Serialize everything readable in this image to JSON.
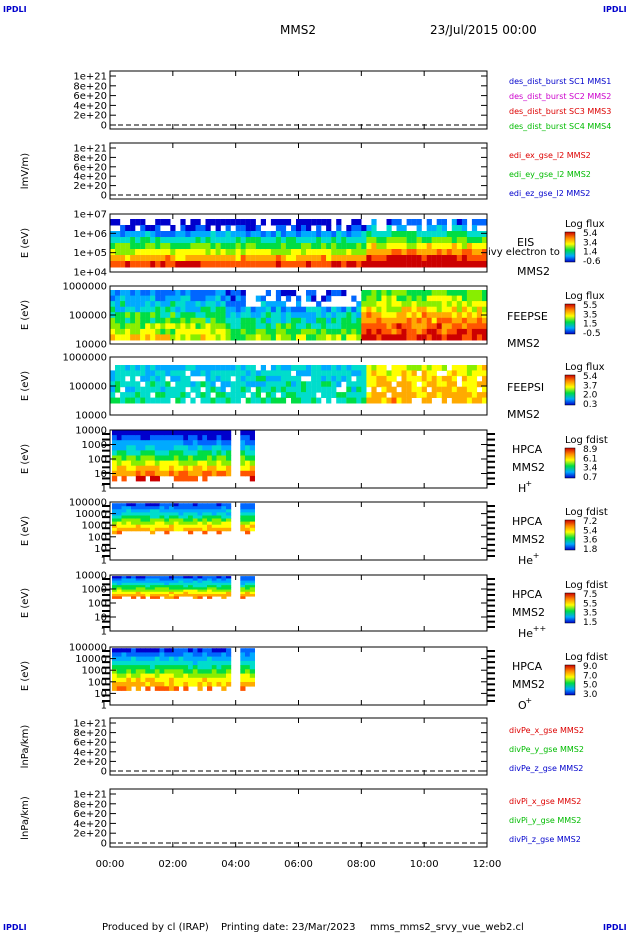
{
  "corner_labels": {
    "top_left": "IPDLI",
    "top_right": "IPDLI",
    "bottom_left": "IPDLI",
    "bottom_right": "IPDLI"
  },
  "header": {
    "mission": "MMS2",
    "date": "23/Jul/2015 00:00"
  },
  "footer": {
    "produced_by": "Produced by cl (IRAP)",
    "print_date": "Printing date: 23/Mar/2023",
    "filename": "mms_mms2_srvy_vue_web2.cl"
  },
  "time_axis": [
    "00:00",
    "02:00",
    "04:00",
    "06:00",
    "08:00",
    "10:00",
    "12:00"
  ],
  "chart_data": [
    {
      "type": "line",
      "panel": "des_dist_burst",
      "ylabel": "",
      "ytick_labels": [
        "1e+21",
        "8e+20",
        "6e+20",
        "4e+20",
        "2e+20",
        "0"
      ],
      "legend": [
        {
          "label": "des_dist_burst SC1 MMS1",
          "color": "#0000cc"
        },
        {
          "label": "des_dist_burst SC2 MMS2",
          "color": "#cc00cc"
        },
        {
          "label": "des_dist_burst SC3 MMS3",
          "color": "#dd0000"
        },
        {
          "label": "des_dist_burst SC4 MMS4",
          "color": "#00bb00"
        }
      ],
      "series": []
    },
    {
      "type": "line",
      "panel": "edi",
      "ylabel": "lmV/m)",
      "ytick_labels": [
        "1e+21",
        "8e+20",
        "6e+20",
        "4e+20",
        "2e+20",
        "0"
      ],
      "legend": [
        {
          "label": "edi_ex_gse_l2 MMS2",
          "color": "#dd0000"
        },
        {
          "label": "edi_ey_gse_l2 MMS2",
          "color": "#00bb00"
        },
        {
          "label": "edi_ez_gse_l2 MMS2",
          "color": "#0000cc"
        }
      ],
      "series": []
    },
    {
      "type": "heatmap",
      "panel": "EIS",
      "ylabel": "E (eV)",
      "ytick_labels": [
        "1e+07",
        "1e+06",
        "1e+05",
        "1e+04"
      ],
      "side_labels": [
        "EIS",
        "MMS2"
      ],
      "overflow_label": "ivy electron to",
      "colorbar": {
        "title": "Log flux",
        "ticks": [
          "5.4",
          "3.4",
          "1.4",
          "-0.6"
        ]
      }
    },
    {
      "type": "heatmap",
      "panel": "FEEPSE",
      "ylabel": "E (eV)",
      "ytick_labels": [
        "1000000",
        "100000",
        "10000"
      ],
      "side_labels": [
        "FEEPSE",
        "MMS2"
      ],
      "colorbar": {
        "title": "Log flux",
        "ticks": [
          "5.5",
          "3.5",
          "1.5",
          "-0.5"
        ]
      }
    },
    {
      "type": "heatmap",
      "panel": "FEEPSI",
      "ylabel": "E (eV)",
      "ytick_labels": [
        "1000000",
        "100000",
        "10000"
      ],
      "side_labels": [
        "FEEPSI",
        "MMS2"
      ],
      "colorbar": {
        "title": "Log flux",
        "ticks": [
          "5.4",
          "3.7",
          "2.0",
          "0.3"
        ]
      }
    },
    {
      "type": "heatmap",
      "panel": "HPCA H+",
      "ylabel": "E (eV)",
      "ytick_labels": [
        "10000",
        "1000",
        "100",
        "10",
        "1"
      ],
      "side_labels": [
        "HPCA",
        "MMS2"
      ],
      "species": {
        "base": "H",
        "charge": "+"
      },
      "colorbar": {
        "title": "Log fdist",
        "ticks": [
          "8.9",
          "6.1",
          "3.4",
          "0.7"
        ]
      }
    },
    {
      "type": "heatmap",
      "panel": "HPCA He+",
      "ylabel": "E (eV)",
      "ytick_labels": [
        "100000",
        "10000",
        "1000",
        "100",
        "10",
        "1"
      ],
      "side_labels": [
        "HPCA",
        "MMS2"
      ],
      "species": {
        "base": "He",
        "charge": "+"
      },
      "colorbar": {
        "title": "Log fdist",
        "ticks": [
          "7.2",
          "5.4",
          "3.6",
          "1.8"
        ]
      }
    },
    {
      "type": "heatmap",
      "panel": "HPCA He++",
      "ylabel": "E (eV)",
      "ytick_labels": [
        "10000",
        "1000",
        "100",
        "10",
        "1"
      ],
      "side_labels": [
        "HPCA",
        "MMS2"
      ],
      "species": {
        "base": "He",
        "charge": "++"
      },
      "colorbar": {
        "title": "Log fdist",
        "ticks": [
          "7.5",
          "5.5",
          "3.5",
          "1.5"
        ]
      }
    },
    {
      "type": "heatmap",
      "panel": "HPCA O+",
      "ylabel": "E (eV)",
      "ytick_labels": [
        "100000",
        "10000",
        "1000",
        "100",
        "10",
        "1"
      ],
      "side_labels": [
        "HPCA",
        "MMS2"
      ],
      "species": {
        "base": "O",
        "charge": "+"
      },
      "colorbar": {
        "title": "Log fdist",
        "ticks": [
          "9.0",
          "7.0",
          "5.0",
          "3.0"
        ]
      }
    },
    {
      "type": "line",
      "panel": "divPe",
      "ylabel": "lnPa/km)",
      "ytick_labels": [
        "1e+21",
        "8e+20",
        "6e+20",
        "4e+20",
        "2e+20",
        "0"
      ],
      "legend": [
        {
          "label": "divPe_x_gse MMS2",
          "color": "#dd0000"
        },
        {
          "label": "divPe_y_gse MMS2",
          "color": "#00bb00"
        },
        {
          "label": "divPe_z_gse MMS2",
          "color": "#0000cc"
        }
      ],
      "series": []
    },
    {
      "type": "line",
      "panel": "divPi",
      "ylabel": "lnPa/km)",
      "ytick_labels": [
        "1e+21",
        "8e+20",
        "6e+20",
        "4e+20",
        "2e+20",
        "0"
      ],
      "legend": [
        {
          "label": "divPi_x_gse MMS2",
          "color": "#dd0000"
        },
        {
          "label": "divPi_y_gse MMS2",
          "color": "#00bb00"
        },
        {
          "label": "divPi_z_gse MMS2",
          "color": "#0000cc"
        }
      ],
      "series": []
    }
  ]
}
